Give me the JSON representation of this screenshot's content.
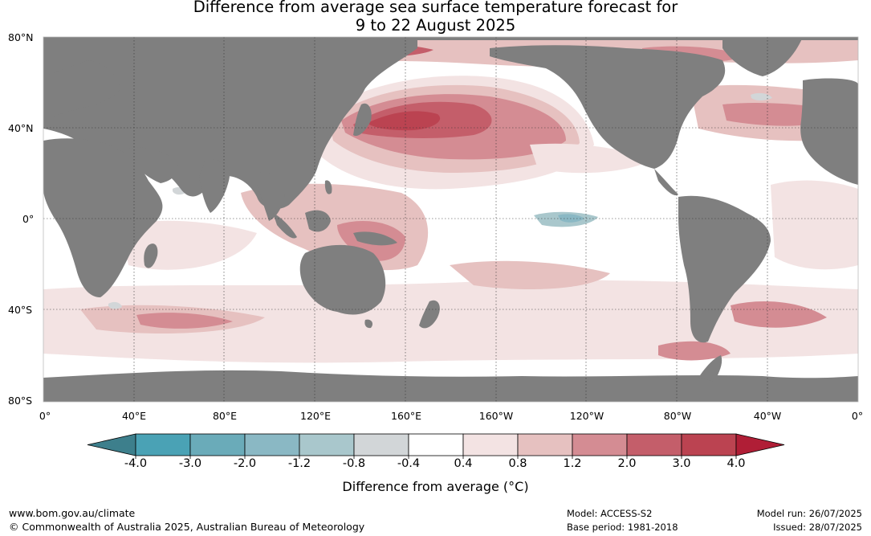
{
  "title": {
    "line1": "Difference from average sea surface temperature forecast for",
    "line2": "9 to 22 August 2025"
  },
  "map": {
    "lat_labels": [
      "80°N",
      "40°N",
      "0°",
      "40°S",
      "80°S"
    ],
    "lon_labels": [
      "0°",
      "40°E",
      "80°E",
      "120°E",
      "160°E",
      "160°W",
      "120°W",
      "80°W",
      "40°W",
      "0°"
    ],
    "land_color": "#7f7f7f",
    "ocean_color": "#ffffff"
  },
  "colorbar": {
    "ticks": [
      "-4.0",
      "-3.0",
      "-2.0",
      "-1.2",
      "-0.8",
      "-0.4",
      "0.4",
      "0.8",
      "1.2",
      "2.0",
      "3.0",
      "4.0"
    ],
    "colors": [
      "#3d7f8c",
      "#4aa2b5",
      "#6aabb9",
      "#8ab8c4",
      "#a9c7cc",
      "#d2d6d8",
      "#ffffff",
      "#f3e3e3",
      "#e6c1c0",
      "#d48c93",
      "#c45e6a",
      "#bb4351",
      "#b01e36"
    ],
    "label": "Difference from average (°C)"
  },
  "footer": {
    "website": "www.bom.gov.au/climate",
    "copyright": "© Commonwealth of Australia 2025, Australian Bureau of Meteorology",
    "model": "Model: ACCESS-S2",
    "base_period": "Base period: 1981-2018",
    "model_run": "Model run: 26/07/2025",
    "issued": "Issued: 28/07/2025"
  }
}
